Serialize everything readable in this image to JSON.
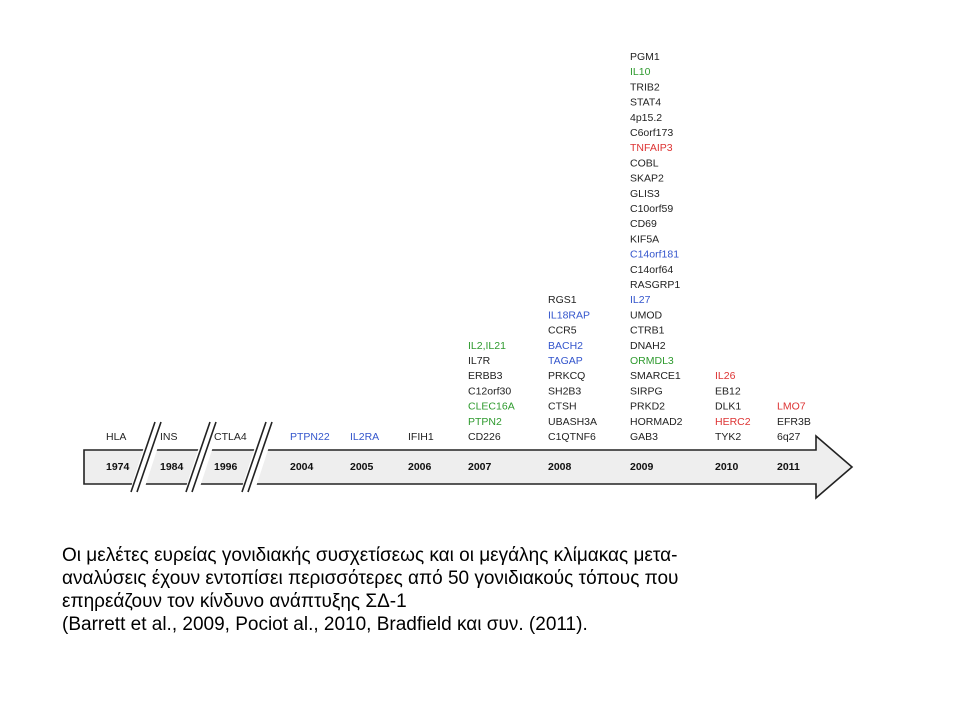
{
  "colors": {
    "black": "#222222",
    "green": "#2e9a2e",
    "blue": "#3355cc",
    "red": "#dd3333",
    "arrow_fill": "#eeeeee",
    "arrow_stroke": "#222222"
  },
  "timeline": [
    {
      "year": "1974",
      "genes": [
        {
          "name": "HLA",
          "color": "black"
        }
      ]
    },
    {
      "year": "1984",
      "genes": [
        {
          "name": "INS",
          "color": "black"
        }
      ]
    },
    {
      "year": "1996",
      "genes": [
        {
          "name": "CTLA4",
          "color": "black"
        }
      ]
    },
    {
      "year": "2004",
      "genes": [
        {
          "name": "PTPN22",
          "color": "blue"
        }
      ]
    },
    {
      "year": "2005",
      "genes": [
        {
          "name": "IL2RA",
          "color": "blue"
        }
      ]
    },
    {
      "year": "2006",
      "genes": [
        {
          "name": "IFIH1",
          "color": "black"
        }
      ]
    },
    {
      "year": "2007",
      "genes": [
        {
          "name": "IL2,IL21",
          "color": "green"
        },
        {
          "name": "IL7R",
          "color": "black"
        },
        {
          "name": "ERBB3",
          "color": "black"
        },
        {
          "name": "C12orf30",
          "color": "black"
        },
        {
          "name": "CLEC16A",
          "color": "green"
        },
        {
          "name": "PTPN2",
          "color": "green"
        },
        {
          "name": "CD226",
          "color": "black"
        }
      ]
    },
    {
      "year": "2008",
      "genes": [
        {
          "name": "RGS1",
          "color": "black"
        },
        {
          "name": "IL18RAP",
          "color": "blue"
        },
        {
          "name": "CCR5",
          "color": "black"
        },
        {
          "name": "BACH2",
          "color": "blue"
        },
        {
          "name": "TAGAP",
          "color": "blue"
        },
        {
          "name": "PRKCQ",
          "color": "black"
        },
        {
          "name": "SH2B3",
          "color": "black"
        },
        {
          "name": "CTSH",
          "color": "black"
        },
        {
          "name": "UBASH3A",
          "color": "black"
        },
        {
          "name": "C1QTNF6",
          "color": "black"
        }
      ]
    },
    {
      "year": "2009",
      "genes": [
        {
          "name": "PGM1",
          "color": "black"
        },
        {
          "name": "IL10",
          "color": "green"
        },
        {
          "name": "TRIB2",
          "color": "black"
        },
        {
          "name": "STAT4",
          "color": "black"
        },
        {
          "name": "4p15.2",
          "color": "black"
        },
        {
          "name": "C6orf173",
          "color": "black"
        },
        {
          "name": "TNFAIP3",
          "color": "red"
        },
        {
          "name": "COBL",
          "color": "black"
        },
        {
          "name": "SKAP2",
          "color": "black"
        },
        {
          "name": "GLIS3",
          "color": "black"
        },
        {
          "name": "C10orf59",
          "color": "black"
        },
        {
          "name": "CD69",
          "color": "black"
        },
        {
          "name": "KIF5A",
          "color": "black"
        },
        {
          "name": "C14orf181",
          "color": "blue"
        },
        {
          "name": "C14orf64",
          "color": "black"
        },
        {
          "name": "RASGRP1",
          "color": "black"
        },
        {
          "name": "IL27",
          "color": "blue"
        },
        {
          "name": "UMOD",
          "color": "black"
        },
        {
          "name": "CTRB1",
          "color": "black"
        },
        {
          "name": "DNAH2",
          "color": "black"
        },
        {
          "name": "ORMDL3",
          "color": "green"
        },
        {
          "name": "SMARCE1",
          "color": "black"
        },
        {
          "name": "SIRPG",
          "color": "black"
        },
        {
          "name": "PRKD2",
          "color": "black"
        },
        {
          "name": "HORMAD2",
          "color": "black"
        },
        {
          "name": "GAB3",
          "color": "black"
        }
      ]
    },
    {
      "year": "2010",
      "genes": [
        {
          "name": "IL26",
          "color": "red"
        },
        {
          "name": "EB12",
          "color": "black"
        },
        {
          "name": "DLK1",
          "color": "black"
        },
        {
          "name": "HERC2",
          "color": "red"
        },
        {
          "name": "TYK2",
          "color": "black"
        }
      ]
    },
    {
      "year": "2011",
      "genes": [
        {
          "name": "LMO7",
          "color": "red"
        },
        {
          "name": "EFR3B",
          "color": "black"
        },
        {
          "name": "6q27",
          "color": "black"
        }
      ]
    }
  ],
  "caption": {
    "line1": "Οι μελέτες ευρείας γονιδιακής συσχετίσεως  και οι  μεγάλης κλίμακας μετα-",
    "line2": "αναλύσεις  έχουν  εντοπίσει περισσότερες από 50 γονιδιακούς τόπους που",
    "line3": "επηρεάζουν τον κίνδυνο ανάπτυξης ΣΔ-1",
    "line4": "(Barrett et al., 2009, Pociot al., 2010, Bradfield και συν. (2011)."
  }
}
